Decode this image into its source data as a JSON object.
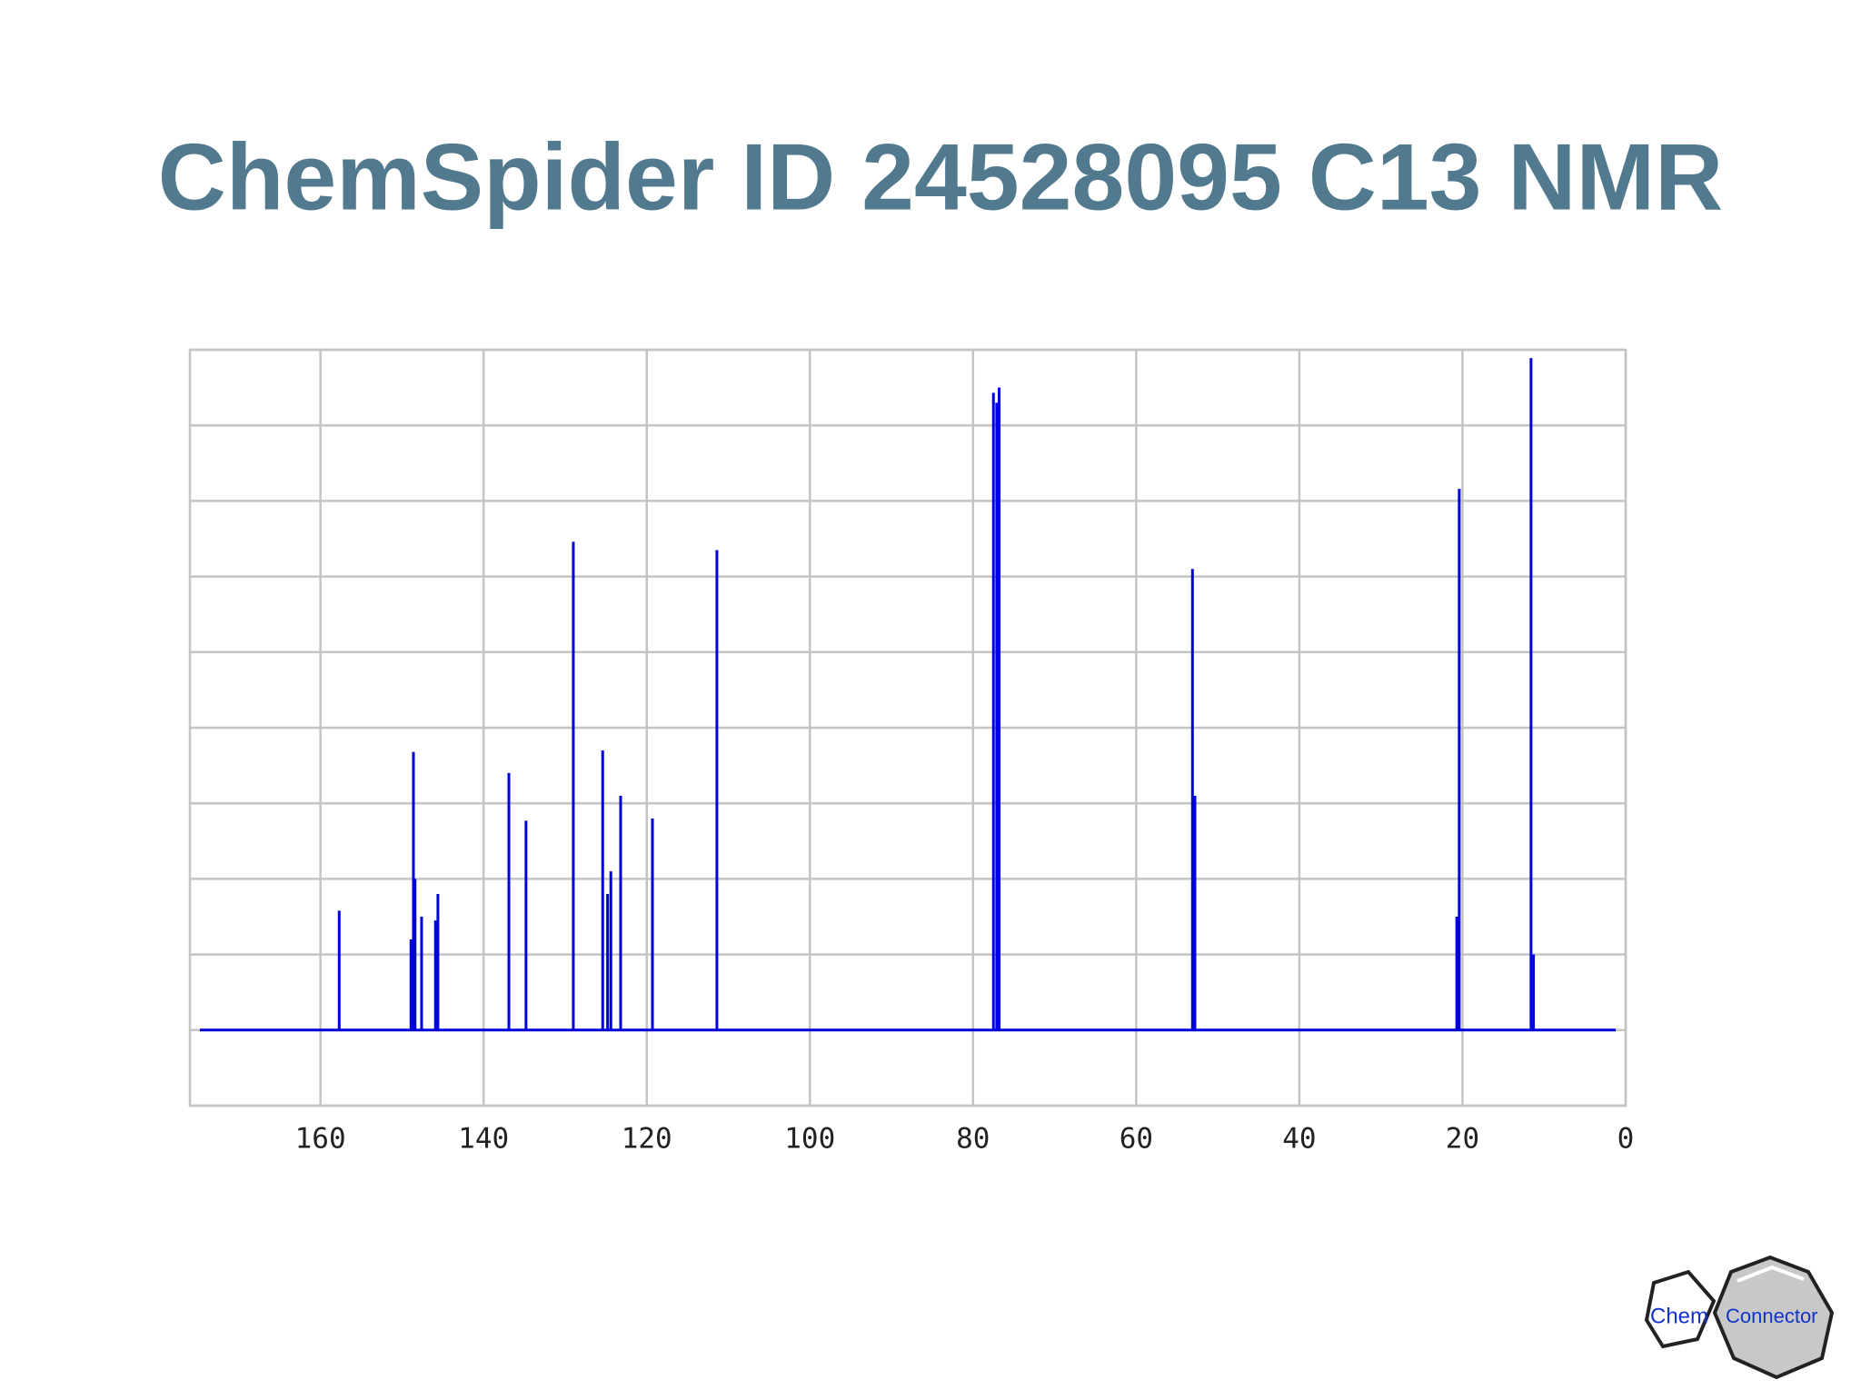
{
  "chart_data": {
    "type": "stick",
    "title": "ChemSpider ID 24528095 C13 NMR",
    "x": [
      157.7,
      148.9,
      148.6,
      148.4,
      147.6,
      145.9,
      145.6,
      136.9,
      134.8,
      129.0,
      125.4,
      124.8,
      124.4,
      123.2,
      119.3,
      111.4,
      77.5,
      77.1,
      76.8,
      53.1,
      52.8,
      20.7,
      20.4,
      11.6,
      11.3
    ],
    "values": [
      1.58,
      1.2,
      3.68,
      2.0,
      1.5,
      1.45,
      1.8,
      3.4,
      2.77,
      6.46,
      3.7,
      1.8,
      2.1,
      3.1,
      2.8,
      6.35,
      8.43,
      8.3,
      8.5,
      6.1,
      3.1,
      1.5,
      7.16,
      8.89,
      1.0
    ],
    "color": "#0000dd",
    "xlim": [
      176,
      0
    ],
    "xticks": [
      160,
      140,
      120,
      100,
      80,
      60,
      40,
      20,
      0
    ],
    "ylim": [
      -1,
      9
    ],
    "yticks": [
      -1,
      0,
      1,
      2,
      3,
      4,
      5,
      6,
      7,
      8,
      9
    ],
    "grid": true
  },
  "logo": {
    "left": "Chem",
    "right": "Connector"
  }
}
